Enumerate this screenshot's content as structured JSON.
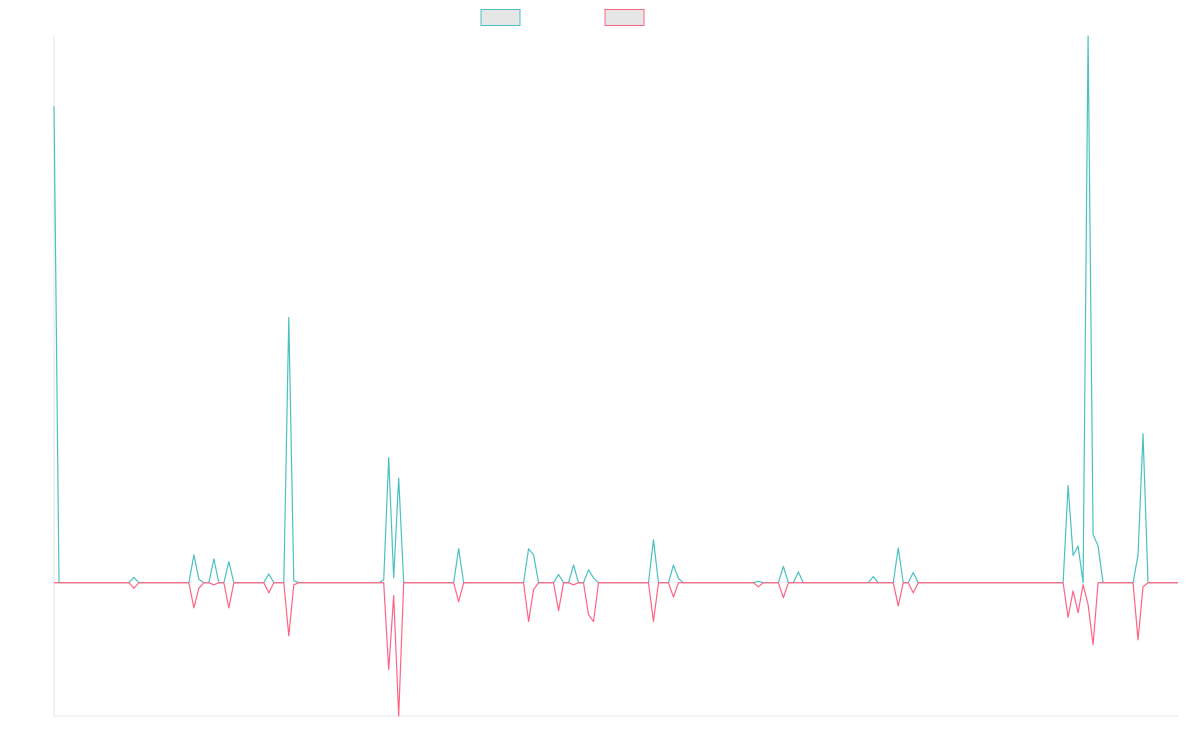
{
  "chart_data": {
    "type": "line",
    "ylim": [
      -19.6,
      80.4
    ],
    "series": [
      {
        "color": "#4bc0c0",
        "values": [
          70.1,
          0,
          0,
          0,
          0,
          0,
          0,
          0,
          0,
          0,
          0,
          0,
          0,
          0,
          0,
          0,
          0.8,
          0,
          0,
          0,
          0,
          0,
          0,
          0,
          0,
          0,
          0,
          0,
          4.1,
          0.5,
          0,
          0,
          3.5,
          0,
          0,
          3.1,
          0,
          0,
          0,
          0,
          0,
          0,
          0,
          1.3,
          0,
          0,
          0,
          39,
          0.3,
          0,
          0,
          0,
          0,
          0,
          0,
          0,
          0,
          0,
          0,
          0,
          0,
          0,
          0,
          0,
          0,
          0,
          0.4,
          18.4,
          0.7,
          15.4,
          0,
          0,
          0,
          0,
          0,
          0,
          0,
          0,
          0,
          0,
          0,
          5,
          0,
          0,
          0,
          0,
          0,
          0,
          0,
          0,
          0,
          0,
          0,
          0,
          0,
          5,
          4.1,
          0,
          0,
          0,
          0,
          1.2,
          0,
          0,
          2.6,
          0,
          0,
          1.9,
          0.7,
          0,
          0,
          0,
          0,
          0,
          0,
          0,
          0,
          0,
          0,
          0,
          6.3,
          0,
          0,
          0,
          2.6,
          0.6,
          0,
          0,
          0,
          0,
          0,
          0,
          0,
          0,
          0,
          0,
          0,
          0,
          0,
          0,
          0,
          0.2,
          0,
          0,
          0,
          0,
          2.4,
          0,
          0,
          1.6,
          0,
          0,
          0,
          0,
          0,
          0,
          0,
          0,
          0,
          0,
          0,
          0,
          0,
          0,
          0.9,
          0,
          0,
          0,
          0,
          5.1,
          0,
          0,
          1.5,
          0,
          0,
          0,
          0,
          0,
          0,
          0,
          0,
          0,
          0,
          0,
          0,
          0,
          0,
          0,
          0,
          0,
          0,
          0,
          0,
          0,
          0,
          0,
          0,
          0,
          0,
          0,
          0,
          0,
          0,
          14.3,
          4,
          5.4,
          0,
          80.4,
          7.1,
          5.4,
          0,
          0,
          0,
          0,
          0,
          0,
          0,
          4.1,
          21.9,
          0,
          0,
          0,
          0,
          0,
          0,
          0
        ]
      },
      {
        "color": "#ff6384",
        "values": [
          0,
          0,
          0,
          0,
          0,
          0,
          0,
          0,
          0,
          0,
          0,
          0,
          0,
          0,
          0,
          0,
          -0.8,
          0,
          0,
          0,
          0,
          0,
          0,
          0,
          0,
          0,
          0,
          0,
          -3.7,
          -0.8,
          0,
          0,
          -0.3,
          0,
          0,
          -3.7,
          0,
          0,
          0,
          0,
          0,
          0,
          0,
          -1.5,
          0,
          0,
          0,
          -7.8,
          -0.3,
          0,
          0,
          0,
          0,
          0,
          0,
          0,
          0,
          0,
          0,
          0,
          0,
          0,
          0,
          0,
          0,
          0,
          0,
          -12.8,
          -1.9,
          -19.6,
          0,
          0,
          0,
          0,
          0,
          0,
          0,
          0,
          0,
          0,
          0,
          -2.8,
          0,
          0,
          0,
          0,
          0,
          0,
          0,
          0,
          0,
          0,
          0,
          0,
          0,
          -5.7,
          -1,
          0,
          0,
          0,
          0,
          -4.1,
          0,
          0,
          -0.3,
          0,
          0,
          -4.7,
          -5.7,
          0,
          0,
          0,
          0,
          0,
          0,
          0,
          0,
          0,
          0,
          0,
          -5.7,
          0,
          0,
          0,
          -2.1,
          0,
          0,
          0,
          0,
          0,
          0,
          0,
          0,
          0,
          0,
          0,
          0,
          0,
          0,
          0,
          0,
          -0.6,
          0,
          0,
          0,
          0,
          -2.2,
          0,
          0,
          0,
          0,
          0,
          0,
          0,
          0,
          0,
          0,
          0,
          0,
          0,
          0,
          0,
          0,
          0,
          0,
          0,
          0,
          0,
          0,
          -3.4,
          0,
          0,
          -1.5,
          0,
          0,
          0,
          0,
          0,
          0,
          0,
          0,
          0,
          0,
          0,
          0,
          0,
          0,
          0,
          0,
          0,
          0,
          0,
          0,
          0,
          0,
          0,
          0,
          0,
          0,
          0,
          0,
          0,
          0,
          -5.1,
          -1.2,
          -4.4,
          -0.3,
          -3.2,
          -9.1,
          0,
          0,
          0,
          0,
          0,
          0,
          0,
          0,
          -8.4,
          -0.6,
          0,
          0,
          0,
          0,
          0,
          0,
          0
        ]
      }
    ]
  }
}
